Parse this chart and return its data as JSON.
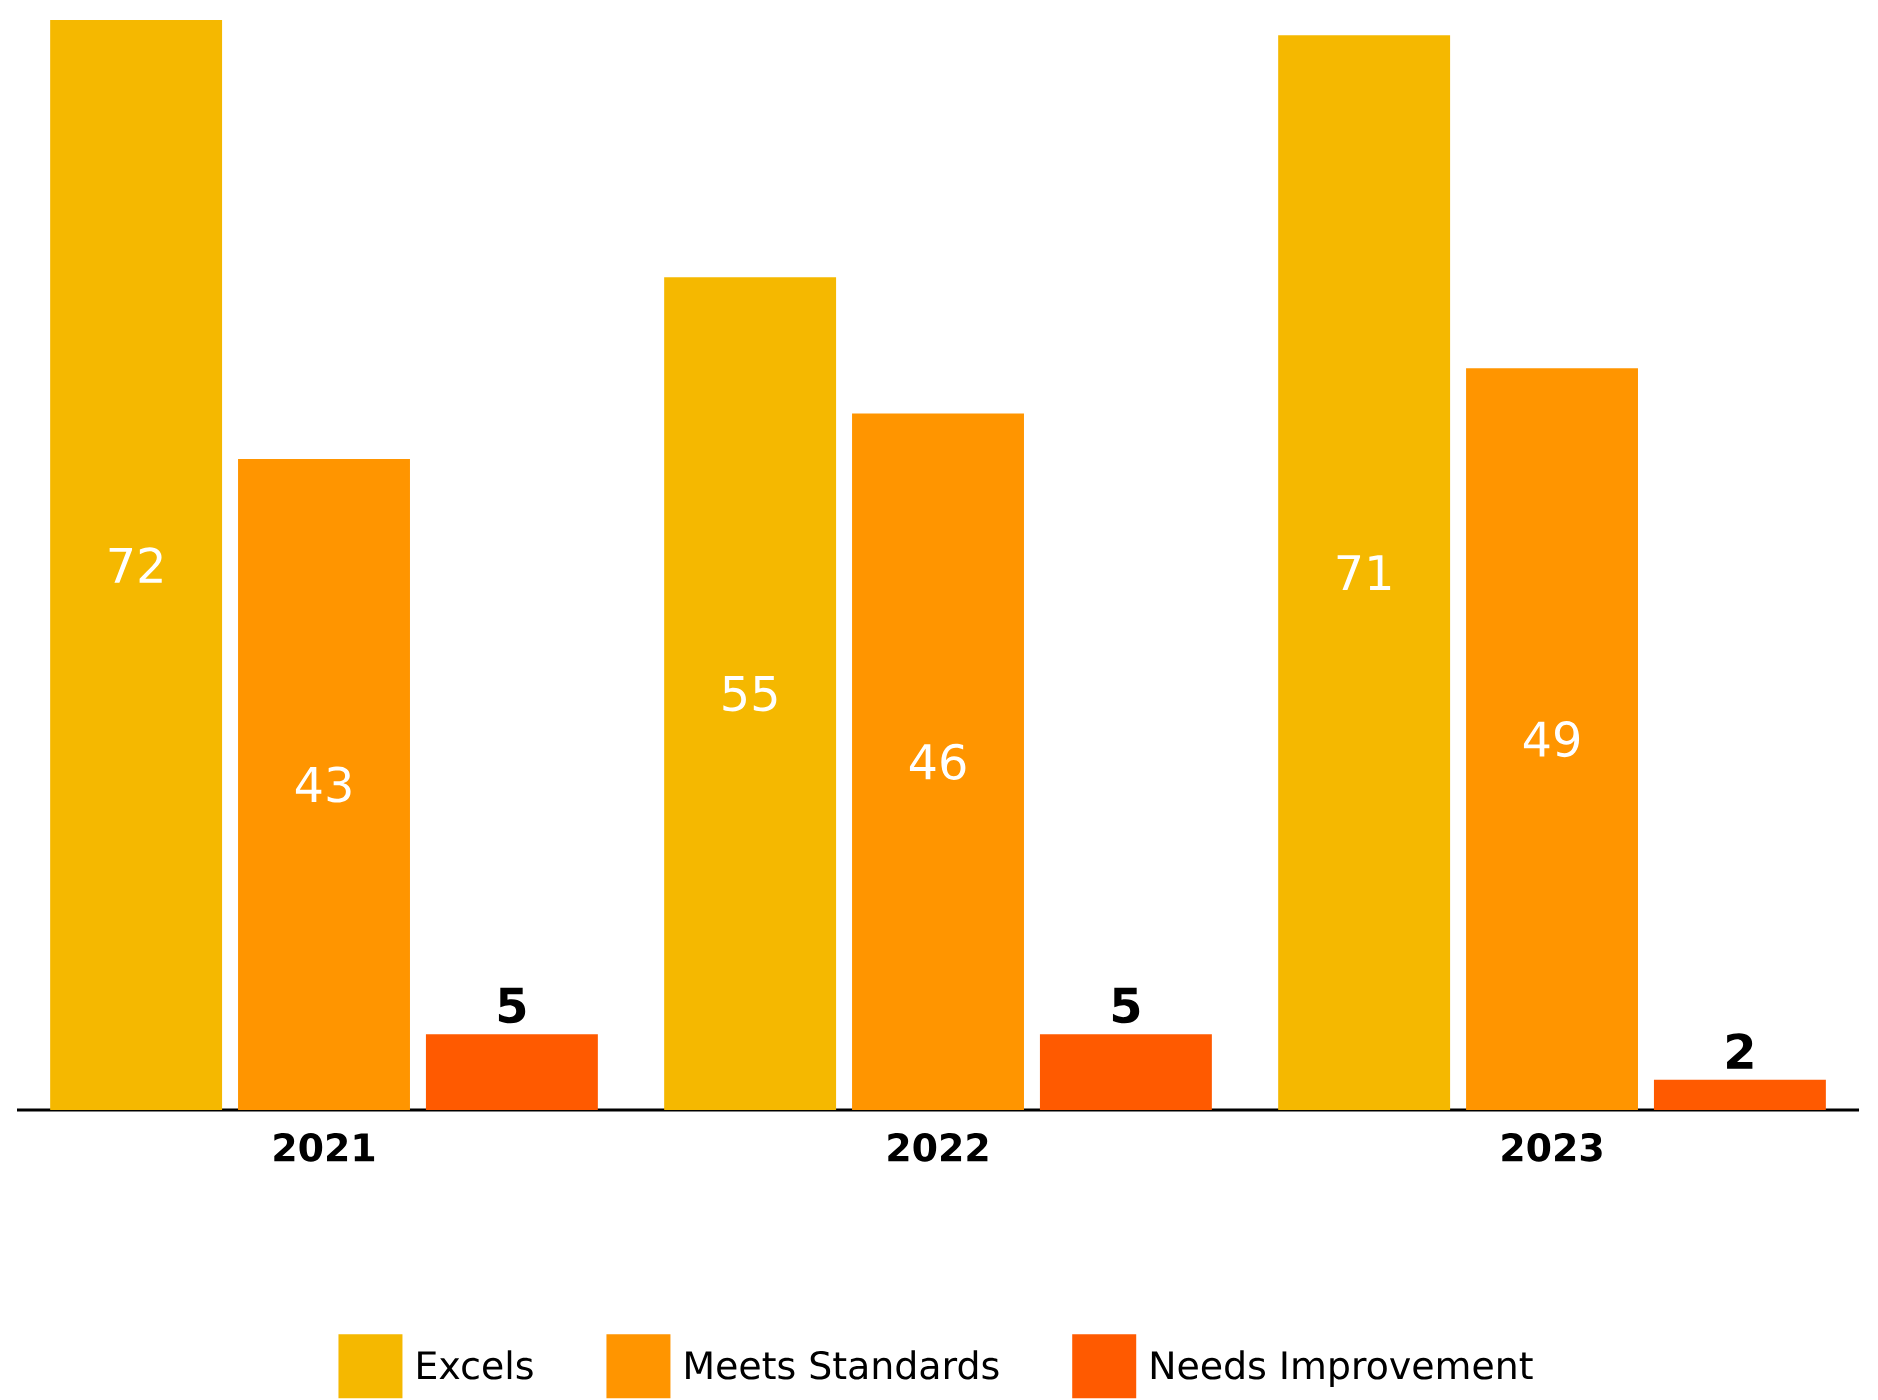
{
  "chart_data": {
    "type": "bar",
    "categories": [
      "2021",
      "2022",
      "2023"
    ],
    "series": [
      {
        "name": "Excels",
        "color": "#f5b800",
        "values": [
          72,
          55,
          71
        ]
      },
      {
        "name": "Meets Standards",
        "color": "#ff9500",
        "values": [
          43,
          46,
          49
        ]
      },
      {
        "name": "Needs Improvement",
        "color": "#ff5a00",
        "values": [
          5,
          5,
          2
        ]
      }
    ],
    "data_labels": true,
    "legend": "bottom"
  }
}
